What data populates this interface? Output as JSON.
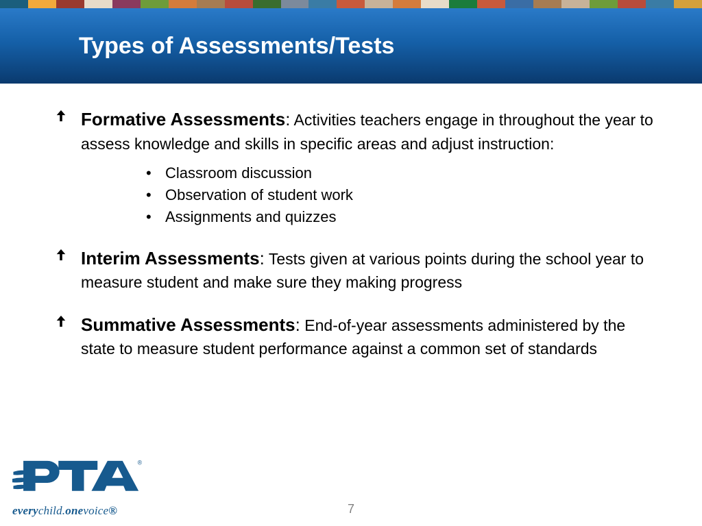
{
  "colorStrip": [
    "#1b5e7d",
    "#f2a93c",
    "#9a3a2e",
    "#e8dcc9",
    "#8a3a5e",
    "#6e9c3a",
    "#d47c3c",
    "#a67c52",
    "#b84c3c",
    "#3a6d2e",
    "#7c8a9c",
    "#3a7ca5",
    "#c85a3c",
    "#c7b299",
    "#d47c3c",
    "#e8dcc9",
    "#1b7c3c",
    "#c85a3c",
    "#3a6da5",
    "#a67c52",
    "#c7b299",
    "#6e9c3a",
    "#b84c3c",
    "#3a7ca5",
    "#d4a03c"
  ],
  "header": {
    "title": "Types of Assessments/Tests",
    "title_color": "#ffffff",
    "band_gradient_top": "#2a7ac8",
    "band_gradient_mid": "#1560a8",
    "band_gradient_bottom": "#0a3a6e"
  },
  "content": {
    "bullet_color": "#000000",
    "items": [
      {
        "term": "Formative Assessments",
        "desc": "Activities teachers engage in throughout the year to assess knowledge and skills in specific areas and adjust instruction:",
        "sub": [
          "Classroom discussion",
          "Observation of student work",
          "Assignments and quizzes"
        ]
      },
      {
        "term": "Interim Assessments",
        "desc": "Tests given at various points during the school year to measure student and make sure they making progress",
        "sub": []
      },
      {
        "term": "Summative Assessments",
        "desc": "End-of-year assessments administered by the state to measure student performance against a common set of standards",
        "sub": []
      }
    ]
  },
  "footer": {
    "logo_color": "#175a8e",
    "tagline_every": "every",
    "tagline_child": "child.",
    "tagline_one": "one",
    "tagline_voice": "voice",
    "tagline_r": "®",
    "page_number": "7"
  }
}
